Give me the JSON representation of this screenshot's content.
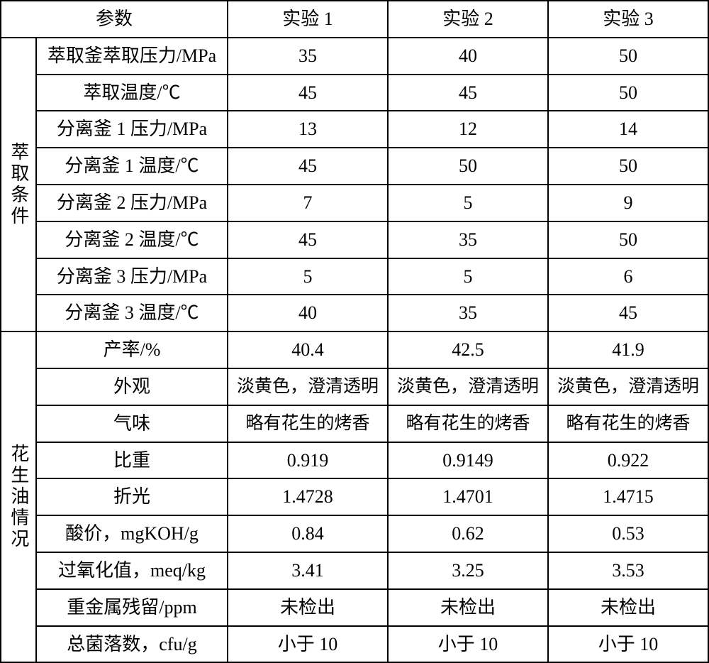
{
  "header": {
    "param": "参数",
    "exp1": "实验 1",
    "exp2": "实验 2",
    "exp3": "实验 3"
  },
  "section1": {
    "title": "萃取条件",
    "rows": [
      {
        "param": "萃取釜萃取压力/MPa",
        "v1": "35",
        "v2": "40",
        "v3": "50"
      },
      {
        "param": "萃取温度/℃",
        "v1": "45",
        "v2": "45",
        "v3": "50"
      },
      {
        "param": "分离釜 1 压力/MPa",
        "v1": "13",
        "v2": "12",
        "v3": "14"
      },
      {
        "param": "分离釜 1 温度/℃",
        "v1": "45",
        "v2": "50",
        "v3": "50"
      },
      {
        "param": "分离釜 2 压力/MPa",
        "v1": "7",
        "v2": "5",
        "v3": "9"
      },
      {
        "param": "分离釜 2 温度/℃",
        "v1": "45",
        "v2": "35",
        "v3": "50"
      },
      {
        "param": "分离釜 3 压力/MPa",
        "v1": "5",
        "v2": "5",
        "v3": "6"
      },
      {
        "param": "分离釜 3 温度/℃",
        "v1": "40",
        "v2": "35",
        "v3": "45"
      }
    ]
  },
  "section2": {
    "title": "花生油情况",
    "rows": [
      {
        "param": "产率/%",
        "v1": "40.4",
        "v2": "42.5",
        "v3": "41.9"
      },
      {
        "param": "外观",
        "v1": "淡黄色，澄清透明",
        "v2": "淡黄色，澄清透明",
        "v3": "淡黄色，澄清透明"
      },
      {
        "param": "气味",
        "v1": "略有花生的烤香",
        "v2": "略有花生的烤香",
        "v3": "略有花生的烤香"
      },
      {
        "param": "比重",
        "v1": "0.919",
        "v2": "0.9149",
        "v3": "0.922"
      },
      {
        "param": "折光",
        "v1": "1.4728",
        "v2": "1.4701",
        "v3": "1.4715"
      },
      {
        "param": "酸价，mgKOH/g",
        "v1": "0.84",
        "v2": "0.62",
        "v3": "0.53"
      },
      {
        "param": "过氧化值，meq/kg",
        "v1": "3.41",
        "v2": "3.25",
        "v3": "3.53"
      },
      {
        "param": "重金属残留/ppm",
        "v1": "未检出",
        "v2": "未检出",
        "v3": "未检出"
      },
      {
        "param": "总菌落数，cfu/g",
        "v1": "小于 10",
        "v2": "小于 10",
        "v3": "小于 10"
      }
    ]
  }
}
